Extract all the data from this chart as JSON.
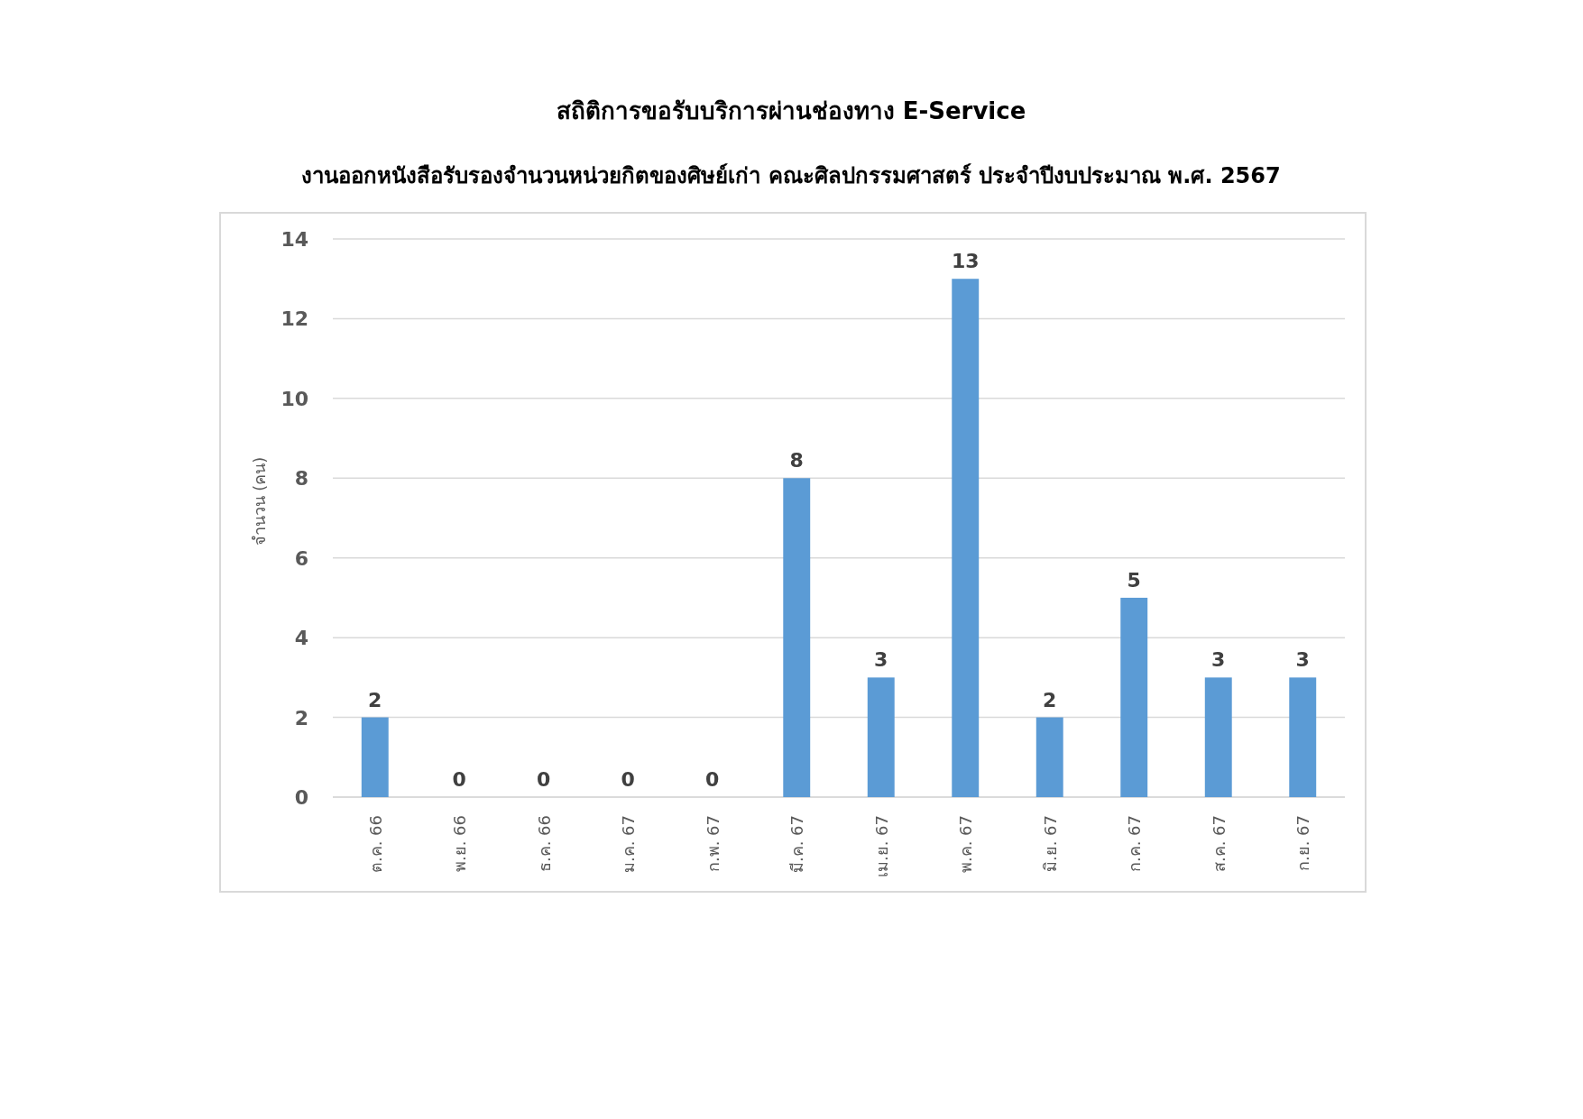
{
  "chart_data": {
    "type": "bar",
    "title": "สถิติการขอรับบริการผ่านช่องทาง E-Service",
    "subtitle": "งานออกหนังสือรับรองจำนวนหน่วยกิตของศิษย์เก่า คณะศิลปกรรมศาสตร์ ประจำปีงบประมาณ พ.ศ. 2567",
    "ylabel": "จำนวน (คน)",
    "categories": [
      "ต.ค. 66",
      "พ.ย. 66",
      "ธ.ค. 66",
      "ม.ค. 67",
      "ก.พ. 67",
      "มี.ค. 67",
      "เม.ย. 67",
      "พ.ค. 67",
      "มิ.ย. 67",
      "ก.ค. 67",
      "ส.ค. 67",
      "ก.ย. 67"
    ],
    "values": [
      2,
      0,
      0,
      0,
      0,
      8,
      3,
      13,
      2,
      5,
      3,
      3
    ],
    "color": "#5b9bd5",
    "ylim": [
      0,
      14
    ],
    "yticks": [
      0,
      2,
      4,
      6,
      8,
      10,
      12,
      14
    ],
    "grid": "y",
    "data_labels": true
  }
}
